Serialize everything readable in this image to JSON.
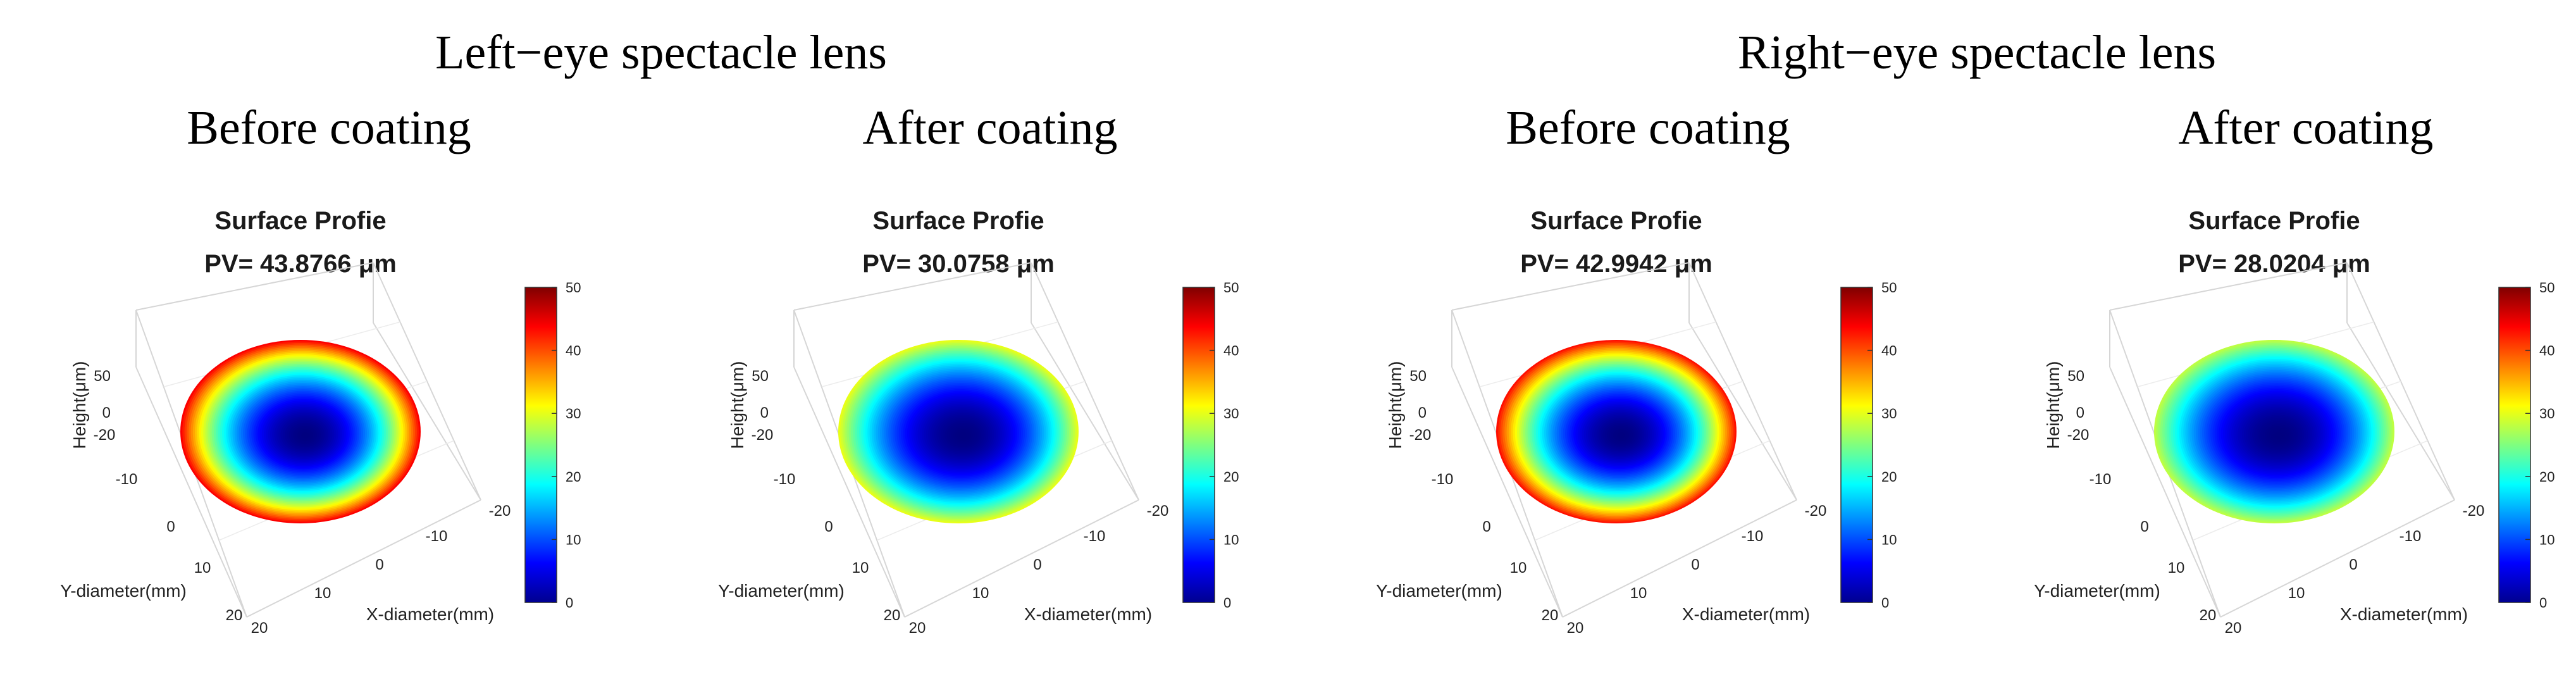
{
  "figure": {
    "left_group_heading": "Left−eye spectacle lens",
    "right_group_heading": "Right−eye spectacle lens",
    "column_headings": [
      "Before coating",
      "After coating",
      "Before coating",
      "After coating"
    ]
  },
  "chart_data": [
    {
      "type": "surface3d",
      "group": "Left−eye spectacle lens",
      "subtitle": "Before coating",
      "title": "Surface Profie",
      "pv_label": "PV= 43.8766 μm",
      "pv_um": 43.8766,
      "xlabel": "X-diameter(mm)",
      "ylabel": "Y-diameter(mm)",
      "zlabel": "Height(μm)",
      "x_ticks": [
        "20",
        "10",
        "0",
        "-10",
        "-20"
      ],
      "y_ticks": [
        "-20",
        "-10",
        "0",
        "10",
        "20"
      ],
      "z_ticks": [
        "50",
        "0"
      ],
      "colorbar": {
        "min": 0,
        "max": 50,
        "ticks": [
          "50",
          "40",
          "30",
          "20",
          "10",
          "0"
        ],
        "colormap": "jet"
      }
    },
    {
      "type": "surface3d",
      "group": "Left−eye spectacle lens",
      "subtitle": "After coating",
      "title": "Surface Profie",
      "pv_label": "PV= 30.0758 μm",
      "pv_um": 30.0758,
      "xlabel": "X-diameter(mm)",
      "ylabel": "Y-diameter(mm)",
      "zlabel": "Height(μm)",
      "x_ticks": [
        "20",
        "10",
        "0",
        "-10",
        "-20"
      ],
      "y_ticks": [
        "-20",
        "-10",
        "0",
        "10",
        "20"
      ],
      "z_ticks": [
        "50",
        "0"
      ],
      "colorbar": {
        "min": 0,
        "max": 50,
        "ticks": [
          "50",
          "40",
          "30",
          "20",
          "10",
          "0"
        ],
        "colormap": "jet"
      }
    },
    {
      "type": "surface3d",
      "group": "Right−eye spectacle lens",
      "subtitle": "Before coating",
      "title": "Surface Profie",
      "pv_label": "PV= 42.9942 μm",
      "pv_um": 42.9942,
      "xlabel": "X-diameter(mm)",
      "ylabel": "Y-diameter(mm)",
      "zlabel": "Height(μm)",
      "x_ticks": [
        "20",
        "10",
        "0",
        "-10",
        "-20"
      ],
      "y_ticks": [
        "-20",
        "-10",
        "0",
        "10",
        "20"
      ],
      "z_ticks": [
        "50",
        "0"
      ],
      "colorbar": {
        "min": 0,
        "max": 50,
        "ticks": [
          "50",
          "40",
          "30",
          "20",
          "10",
          "0"
        ],
        "colormap": "jet"
      }
    },
    {
      "type": "surface3d",
      "group": "Right−eye spectacle lens",
      "subtitle": "After coating",
      "title": "Surface Profie",
      "pv_label": "PV= 28.0204 μm",
      "pv_um": 28.0204,
      "xlabel": "X-diameter(mm)",
      "ylabel": "Y-diameter(mm)",
      "zlabel": "Height(μm)",
      "x_ticks": [
        "20",
        "10",
        "0",
        "-10",
        "-20"
      ],
      "y_ticks": [
        "-20",
        "-10",
        "0",
        "10",
        "20"
      ],
      "z_ticks": [
        "50",
        "0"
      ],
      "colorbar": {
        "min": 0,
        "max": 50,
        "ticks": [
          "50",
          "40",
          "30",
          "20",
          "10",
          "0"
        ],
        "colormap": "jet"
      }
    }
  ]
}
